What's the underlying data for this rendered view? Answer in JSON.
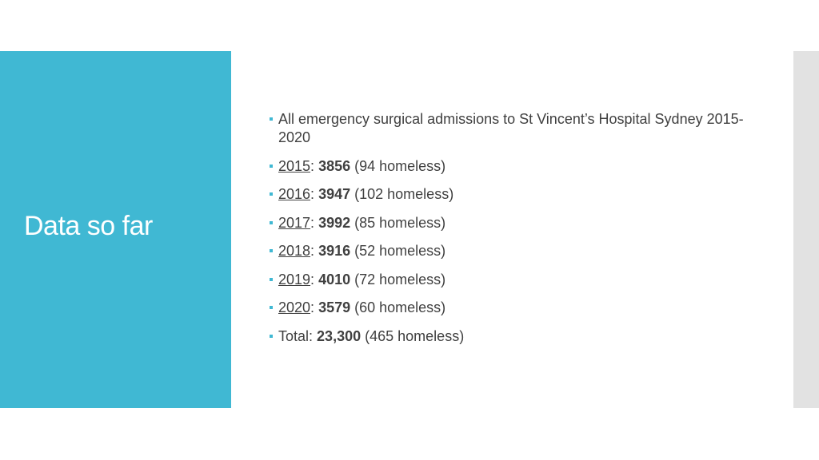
{
  "slide": {
    "title": "Data so far",
    "intro": "All emergency surgical admissions to St Vincent’s Hospital Sydney 2015-2020",
    "rows": [
      {
        "year": "2015",
        "count": "3856",
        "note": "(94 homeless)"
      },
      {
        "year": "2016",
        "count": "3947",
        "note": "(102 homeless)"
      },
      {
        "year": "2017",
        "count": "3992",
        "note": "(85 homeless)"
      },
      {
        "year": "2018",
        "count": "3916",
        "note": "(52 homeless)"
      },
      {
        "year": "2019",
        "count": "4010",
        "note": "(72 homeless)"
      },
      {
        "year": "2020",
        "count": "3579",
        "note": "(60 homeless)"
      }
    ],
    "total": {
      "label": "Total:",
      "count": "23,300",
      "note": "(465 homeless)"
    }
  },
  "colors": {
    "accent": "#40b8d3",
    "text": "#404040",
    "side_bar": "#e2e2e2"
  }
}
